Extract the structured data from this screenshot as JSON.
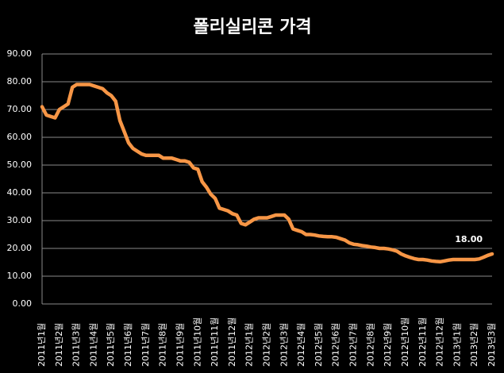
{
  "chart_data": {
    "type": "line",
    "title": "폴리실리콘 가격",
    "categories": [
      "2011년1월",
      null,
      null,
      null,
      "2011년2월",
      null,
      null,
      null,
      "2011년3월",
      null,
      null,
      null,
      "2011년4월",
      null,
      null,
      null,
      "2011년5월",
      null,
      null,
      null,
      "2011년6월",
      null,
      null,
      null,
      "2011년7월",
      null,
      null,
      null,
      "2011년8월",
      null,
      null,
      null,
      "2011년9월",
      null,
      null,
      null,
      "2011년10월",
      null,
      null,
      null,
      "2011년11월",
      null,
      null,
      null,
      "2011년12월",
      null,
      null,
      null,
      "2012년1월",
      null,
      null,
      null,
      "2012년2월",
      null,
      null,
      null,
      "2012년3월",
      null,
      null,
      null,
      "2012년4월",
      null,
      null,
      null,
      "2012년5월",
      null,
      null,
      null,
      "2012년6월",
      null,
      null,
      null,
      "2012년7월",
      null,
      null,
      null,
      "2012년8월",
      null,
      null,
      null,
      "2012년9월",
      null,
      null,
      null,
      "2012년10월",
      null,
      null,
      null,
      "2012년11월",
      null,
      null,
      null,
      "2012년12월",
      null,
      null,
      null,
      "2013년1월",
      null,
      null,
      null,
      "2013년2월",
      null,
      null,
      null,
      "2013년3월"
    ],
    "series": [
      {
        "name": "폴리실리콘",
        "color": "#f79646",
        "values": [
          71,
          68,
          67.5,
          67,
          70,
          71,
          72,
          78,
          79,
          79,
          79,
          79,
          78.5,
          78,
          77.5,
          76,
          75,
          73,
          66,
          62,
          58,
          56,
          55,
          54,
          53.5,
          53.5,
          53.5,
          53.5,
          52.5,
          52.5,
          52.5,
          52,
          51.5,
          51.5,
          51,
          49,
          48.5,
          44,
          42,
          39.5,
          38,
          34.5,
          34,
          33.5,
          32.5,
          32,
          29,
          28.5,
          29.5,
          30.5,
          31,
          31,
          31,
          31.5,
          32,
          32,
          32,
          30.5,
          27,
          26.5,
          26,
          25,
          25,
          24.8,
          24.5,
          24.3,
          24.2,
          24.2,
          24,
          23.5,
          23,
          22,
          21.5,
          21.3,
          21,
          20.8,
          20.5,
          20.3,
          20,
          20,
          19.8,
          19.5,
          19,
          18,
          17.3,
          16.8,
          16.3,
          16,
          16,
          15.8,
          15.5,
          15.3,
          15.2,
          15.5,
          15.8,
          16,
          16,
          16,
          16,
          16,
          16,
          16.2,
          16.8,
          17.5,
          18
        ],
        "value_labels": [
          null,
          null,
          null,
          null,
          null,
          null,
          null,
          null,
          null,
          null,
          null,
          null,
          null,
          null,
          null,
          null,
          null,
          null,
          null,
          null,
          null,
          null,
          null,
          null,
          null,
          null,
          null,
          null,
          null,
          null,
          null,
          null,
          null,
          null,
          null,
          null,
          null,
          null,
          null,
          null,
          null,
          null,
          null,
          null,
          null,
          null,
          null,
          null,
          null,
          null,
          null,
          null,
          null,
          null,
          null,
          null,
          null,
          null,
          null,
          null,
          null,
          null,
          null,
          null,
          null,
          null,
          null,
          null,
          null,
          null,
          null,
          null,
          null,
          null,
          null,
          null,
          null,
          null,
          null,
          null,
          null,
          null,
          null,
          null,
          null,
          null,
          null,
          null,
          null,
          null,
          null,
          null,
          null,
          null,
          null,
          null,
          null,
          null,
          null,
          null,
          null,
          null,
          null,
          null,
          "18.00"
        ]
      }
    ],
    "ylim": [
      0,
      90
    ],
    "yticks": [
      {
        "value": 0,
        "label": "0.00"
      },
      {
        "value": 10,
        "label": "10.00"
      },
      {
        "value": 20,
        "label": "20.00"
      },
      {
        "value": 30,
        "label": "30.00"
      },
      {
        "value": 40,
        "label": "40.00"
      },
      {
        "value": 50,
        "label": "50.00"
      },
      {
        "value": 60,
        "label": "60.00"
      },
      {
        "value": 70,
        "label": "70.00"
      },
      {
        "value": 80,
        "label": "80.00"
      },
      {
        "value": 90,
        "label": "90.00"
      }
    ],
    "grid": true
  }
}
